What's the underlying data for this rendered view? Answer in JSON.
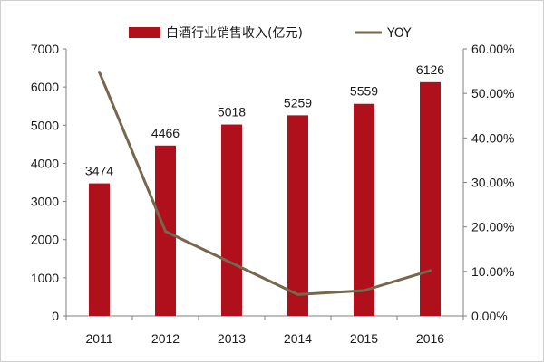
{
  "chart_data": {
    "type": "bar",
    "categories": [
      "2011",
      "2012",
      "2013",
      "2014",
      "2015",
      "2016"
    ],
    "series": [
      {
        "name": "白酒行业销售收入(亿元)",
        "type": "bar",
        "axis": "left",
        "values": [
          3474,
          4466,
          5018,
          5259,
          5559,
          6126
        ],
        "color": "#b0101c"
      },
      {
        "name": "YOY",
        "type": "line",
        "axis": "right",
        "values": [
          54.8,
          19.0,
          11.9,
          4.8,
          5.7,
          10.2
        ],
        "color": "#76674d"
      }
    ],
    "data_labels": [
      "3474",
      "4466",
      "5018",
      "5259",
      "5559",
      "6126"
    ],
    "ylim_left": [
      0,
      7000
    ],
    "yticks_left": [
      "0",
      "1000",
      "2000",
      "3000",
      "4000",
      "5000",
      "6000",
      "7000"
    ],
    "ylim_right": [
      0,
      60
    ],
    "yticks_right": [
      "0.00%",
      "10.00%",
      "20.00%",
      "30.00%",
      "40.00%",
      "50.00%",
      "60.00%"
    ],
    "grid": false,
    "legend_position": "top-center"
  }
}
